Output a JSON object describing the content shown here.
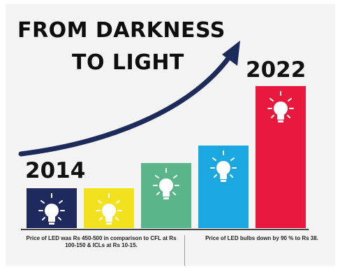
{
  "title": {
    "line1": "FROM DARKNESS",
    "line2": "TO LIGHT"
  },
  "years": {
    "start": "2014",
    "end": "2022"
  },
  "bars": [
    {
      "color": "#1e2a5e",
      "level": 0.28
    },
    {
      "color": "#f2e11d",
      "level": 0.28
    },
    {
      "color": "#5ab58a",
      "level": 0.46
    },
    {
      "color": "#1ba8e0",
      "level": 0.58
    },
    {
      "color": "#e8193c",
      "level": 1.0
    }
  ],
  "arrow_color": "#1c2b59",
  "icons": {
    "bulb": "light-bulb-icon",
    "arrow": "rising-arrow-icon"
  },
  "notes": {
    "left": "Price of LED was Rs 450-500 in comparison to CFL at Rs 100-150 & ICLs at Rs 10-15.",
    "right": "Price of LED bulbs down by 90 % to Rs 38."
  }
}
